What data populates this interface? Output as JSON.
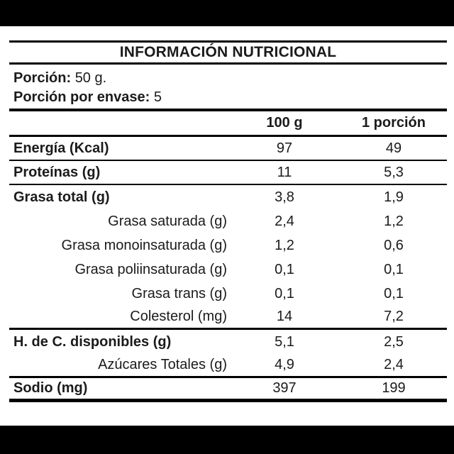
{
  "label": {
    "title": "INFORMACIÓN NUTRICIONAL",
    "serving": {
      "label": "Porción:",
      "value": "50 g."
    },
    "servings_per_container": {
      "label": "Porción por envase:",
      "value": "5"
    },
    "columns": [
      "100 g",
      "1 porción"
    ],
    "rows": [
      {
        "label": "Energía (Kcal)",
        "per_100g": "97",
        "per_portion": "49",
        "bold": true,
        "indent": false,
        "rule": "thin"
      },
      {
        "label": "Proteínas (g)",
        "per_100g": "11",
        "per_portion": "5,3",
        "bold": true,
        "indent": false,
        "rule": "thin"
      },
      {
        "label": "Grasa total (g)",
        "per_100g": "3,8",
        "per_portion": "1,9",
        "bold": true,
        "indent": false,
        "rule": "none"
      },
      {
        "label": "Grasa saturada (g)",
        "per_100g": "2,4",
        "per_portion": "1,2",
        "bold": false,
        "indent": true,
        "rule": "none"
      },
      {
        "label": "Grasa monoinsaturada (g)",
        "per_100g": "1,2",
        "per_portion": "0,6",
        "bold": false,
        "indent": true,
        "rule": "none"
      },
      {
        "label": "Grasa poliinsaturada (g)",
        "per_100g": "0,1",
        "per_portion": "0,1",
        "bold": false,
        "indent": true,
        "rule": "none"
      },
      {
        "label": "Grasa trans (g)",
        "per_100g": "0,1",
        "per_portion": "0,1",
        "bold": false,
        "indent": true,
        "rule": "none"
      },
      {
        "label": "Colesterol (mg)",
        "per_100g": "14",
        "per_portion": "7,2",
        "bold": false,
        "indent": true,
        "rule": "medium"
      },
      {
        "label": "H. de C. disponibles (g)",
        "per_100g": "5,1",
        "per_portion": "2,5",
        "bold": true,
        "indent": false,
        "rule": "none"
      },
      {
        "label": "Azúcares Totales (g)",
        "per_100g": "4,9",
        "per_portion": "2,4",
        "bold": false,
        "indent": true,
        "rule": "medium"
      },
      {
        "label": "Sodio (mg)",
        "per_100g": "397",
        "per_portion": "199",
        "bold": true,
        "indent": false,
        "rule": "thick"
      }
    ],
    "colors": {
      "text": "#1b1b1b",
      "rule": "#000000",
      "background": "#ffffff",
      "letterbox_bar": "#000000"
    }
  }
}
